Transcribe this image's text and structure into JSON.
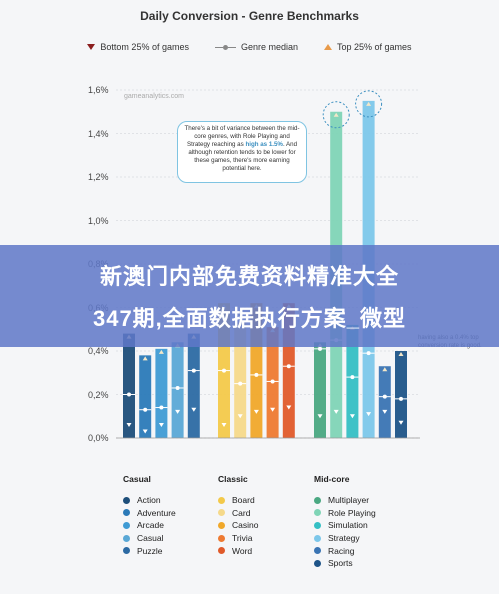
{
  "title": "Daily Conversion - Genre Benchmarks",
  "legend": {
    "bottom": "Bottom 25% of games",
    "median": "Genre median",
    "top": "Top 25% of games"
  },
  "watermark": "gameanalytics.com",
  "callout": {
    "pre": "There's a bit of variance between the mid-core genres, with Role Playing and Strategy reaching as",
    "highlight": "high as 1.5%",
    "post": ". And although retention tends to be lower for these games, there's more earning potential here."
  },
  "side_note": "having also a 0.4% top conversion rate is good.",
  "banner": {
    "line1": "新澳门内部免费资料精准大全",
    "line2": "347期,全面数据执行方案_微型"
  },
  "y_ticks": [
    "0,0%",
    "0,2%",
    "0,4%",
    "0,6%",
    "0,8%",
    "1,0%",
    "1,2%",
    "1,4%",
    "1,6%"
  ],
  "groups": [
    {
      "name": "Casual",
      "items": [
        "Action",
        "Adventure",
        "Arcade",
        "Casual",
        "Puzzle"
      ]
    },
    {
      "name": "Classic",
      "items": [
        "Board",
        "Card",
        "Casino",
        "Trivia",
        "Word"
      ]
    },
    {
      "name": "Mid-core",
      "items": [
        "Multiplayer",
        "Role Playing",
        "Simulation",
        "Strategy",
        "Racing",
        "Sports"
      ]
    }
  ],
  "chart_data": {
    "type": "bar",
    "title": "Daily Conversion - Genre Benchmarks",
    "ylim": [
      0,
      1.6
    ],
    "unit": "%",
    "grid": true,
    "legend_position": "top",
    "series_labels": [
      "Bottom 25% of games",
      "Genre median",
      "Top 25% of games"
    ],
    "genres": [
      {
        "name": "Action",
        "group": "Casual",
        "color": "#1d4e7a",
        "bottom": 0.06,
        "median": 0.2,
        "top": 0.48
      },
      {
        "name": "Adventure",
        "group": "Casual",
        "color": "#2b7ab8",
        "bottom": 0.03,
        "median": 0.13,
        "top": 0.38
      },
      {
        "name": "Arcade",
        "group": "Casual",
        "color": "#3f9bd4",
        "bottom": 0.06,
        "median": 0.14,
        "top": 0.41
      },
      {
        "name": "Casual",
        "group": "Casual",
        "color": "#5aa8d6",
        "bottom": 0.12,
        "median": 0.23,
        "top": 0.44
      },
      {
        "name": "Puzzle",
        "group": "Casual",
        "color": "#2c6aa3",
        "bottom": 0.13,
        "median": 0.31,
        "top": 0.48
      },
      {
        "name": "Board",
        "group": "Classic",
        "color": "#f3c94a",
        "bottom": 0.06,
        "median": 0.31,
        "top": 0.62
      },
      {
        "name": "Card",
        "group": "Classic",
        "color": "#f5d98a",
        "bottom": 0.1,
        "median": 0.25,
        "top": 0.53
      },
      {
        "name": "Casino",
        "group": "Classic",
        "color": "#f0a82a",
        "bottom": 0.12,
        "median": 0.29,
        "top": 0.62
      },
      {
        "name": "Trivia",
        "group": "Classic",
        "color": "#ee7a32",
        "bottom": 0.13,
        "median": 0.26,
        "top": 0.51
      },
      {
        "name": "Word",
        "group": "Classic",
        "color": "#e05a2a",
        "bottom": 0.14,
        "median": 0.33,
        "top": 0.62
      },
      {
        "name": "Multiplayer",
        "group": "Mid-core",
        "color": "#4aa882",
        "bottom": 0.1,
        "median": 0.41,
        "top": 0.44
      },
      {
        "name": "Role Playing",
        "group": "Mid-core",
        "color": "#7fd4b6",
        "bottom": 0.12,
        "median": 0.45,
        "top": 1.5
      },
      {
        "name": "Simulation",
        "group": "Mid-core",
        "color": "#35bfc4",
        "bottom": 0.1,
        "median": 0.28,
        "top": 0.52
      },
      {
        "name": "Strategy",
        "group": "Mid-core",
        "color": "#7cc7ea",
        "bottom": 0.11,
        "median": 0.39,
        "top": 1.55
      },
      {
        "name": "Racing",
        "group": "Mid-core",
        "color": "#3a74b3",
        "bottom": 0.12,
        "median": 0.19,
        "top": 0.33
      },
      {
        "name": "Sports",
        "group": "Mid-core",
        "color": "#1e5488",
        "bottom": 0.07,
        "median": 0.18,
        "top": 0.4
      }
    ]
  }
}
